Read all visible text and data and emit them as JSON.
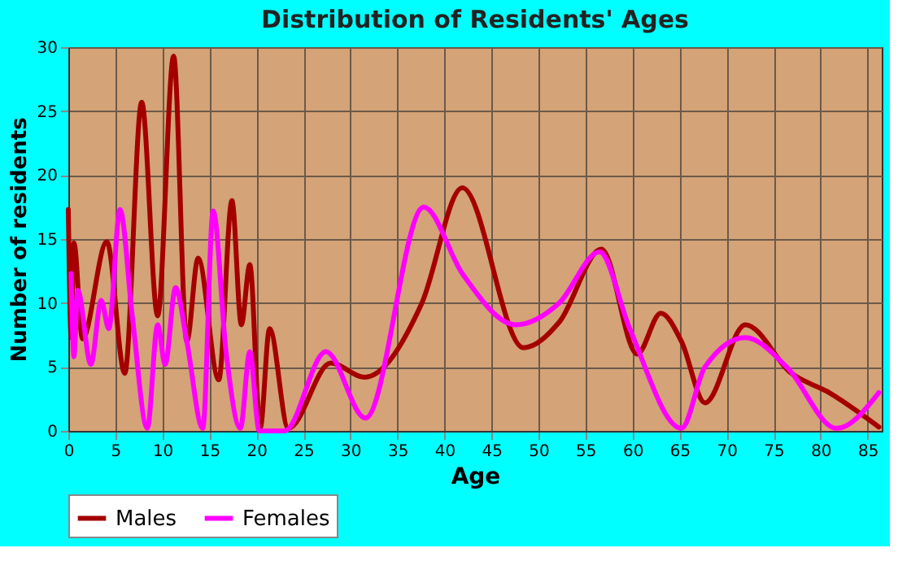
{
  "chart_data": {
    "type": "line",
    "title": "Distribution of Residents' Ages",
    "xlabel": "Age",
    "ylabel": "Number of residents",
    "xlim": [
      0,
      86.5
    ],
    "ylim": [
      0,
      30
    ],
    "xticks": [
      0,
      5,
      10,
      15,
      20,
      25,
      30,
      35,
      40,
      45,
      50,
      55,
      60,
      65,
      70,
      75,
      80,
      85
    ],
    "yticks": [
      0,
      5,
      10,
      15,
      20,
      25,
      30
    ],
    "grid": true,
    "legend": "bottom",
    "marker": "none",
    "line_style": "solid",
    "series": [
      {
        "name": "Males",
        "color": "#a50000",
        "x": [
          0,
          0.3,
          0.6,
          1.5,
          4.1,
          6,
          7.8,
          9.5,
          11.2,
          12.6,
          13.8,
          16,
          17.4,
          18.4,
          19.3,
          20.4,
          21.4,
          23.4,
          27.9,
          31.5,
          37.6,
          41.9,
          48.4,
          52.2,
          56.7,
          60.5,
          63,
          65.2,
          67.7,
          72,
          76.9,
          80.9,
          86.2
        ],
        "values": [
          17.3,
          7.3,
          14.7,
          7.2,
          14.8,
          4.5,
          25.7,
          9,
          29.3,
          7,
          13.5,
          4,
          18,
          8.3,
          13,
          0.2,
          8,
          0.2,
          5.3,
          4.2,
          10,
          19,
          6.5,
          8.5,
          14.2,
          6,
          9.2,
          7,
          2.2,
          8.3,
          4.5,
          3,
          0.3
        ]
      },
      {
        "name": "Females",
        "color": "#ff00ff",
        "x": [
          0.3,
          0.6,
          1,
          2.4,
          3.5,
          4.3,
          5.5,
          6.8,
          8.4,
          9.5,
          10.3,
          11.4,
          12.6,
          14.3,
          15.4,
          16.8,
          18.3,
          19.3,
          20.3,
          23,
          27.4,
          31.6,
          37.8,
          41.9,
          47.6,
          52.2,
          56.5,
          59.7,
          65.2,
          67.7,
          72,
          76.4,
          81.7,
          86.2
        ],
        "values": [
          12.3,
          5.8,
          11,
          5.2,
          10.2,
          8,
          17.3,
          9,
          0.2,
          8.3,
          5.2,
          11.2,
          7,
          0.2,
          17.2,
          6,
          0.2,
          6.2,
          0,
          0,
          6.2,
          1,
          17.5,
          12.3,
          8.3,
          10,
          14,
          8,
          0.2,
          5,
          7.3,
          5,
          0.2,
          3
        ]
      }
    ]
  }
}
